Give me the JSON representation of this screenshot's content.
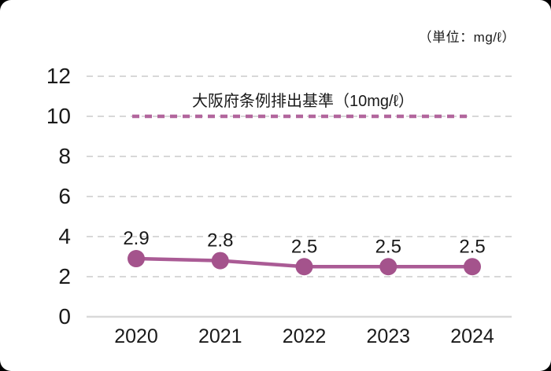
{
  "page": {
    "background": "#000000",
    "card_background": "#ffffff"
  },
  "chart_data": {
    "type": "line",
    "unit_label": "（単位：mg/ℓ）",
    "categories": [
      "2020",
      "2021",
      "2022",
      "2023",
      "2024"
    ],
    "series": [
      {
        "values": [
          2.9,
          2.8,
          2.5,
          2.5,
          2.5
        ]
      }
    ],
    "data_labels": [
      "2.9",
      "2.8",
      "2.5",
      "2.5",
      "2.5"
    ],
    "reference_line": {
      "value": 10,
      "label": "大阪府条例排出基準（10mg/ℓ）"
    },
    "y_ticks": [
      0,
      2,
      4,
      6,
      8,
      10,
      12
    ],
    "ylim": [
      0,
      12
    ],
    "xlabel": "",
    "ylabel": "",
    "grid": true,
    "legend": "none",
    "colors": {
      "marker": "#a4538c",
      "line": "#aa5b95",
      "reference": "#b2669d",
      "grid": "#cccccc",
      "axis": "#d9d9d9",
      "text": "#1a1a1a"
    }
  }
}
